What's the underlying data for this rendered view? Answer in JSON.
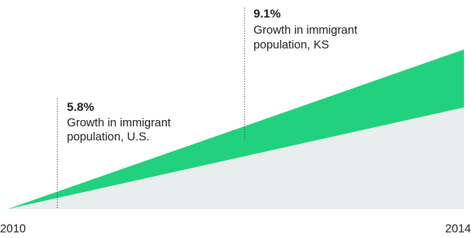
{
  "chart_data": {
    "type": "area",
    "x_start_label": "2010",
    "x_end_label": "2014",
    "colors": {
      "background": "#ffffff",
      "base_area": "#e8eeed",
      "growth_area": "#22d17d",
      "leader_line": "#4a4a4a",
      "text": "#1f1f1f"
    },
    "series": [
      {
        "values": [
          0,
          5.8
        ]
      },
      {
        "values": [
          0,
          9.1
        ]
      }
    ],
    "annotations": [
      {
        "value_label": "5.8%",
        "line1": "Growth in immigrant",
        "line2": "population, U.S."
      },
      {
        "value_label": "9.1%",
        "line1": "Growth in immigrant",
        "line2": "population, KS"
      }
    ]
  }
}
